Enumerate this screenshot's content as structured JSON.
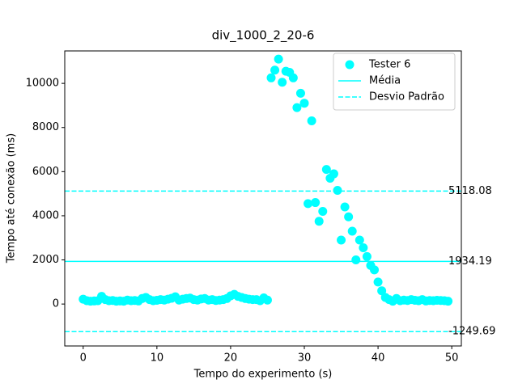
{
  "chart_data": {
    "type": "scatter",
    "title": "div_1000_2_20-6",
    "x_label": "Tempo do experimento (s)",
    "y_label": "Tempo até conexão (ms)",
    "xlim": [
      -2.5,
      51.3
    ],
    "ylim": [
      -1900,
      11470
    ],
    "xticks": [
      0,
      10,
      20,
      30,
      40,
      50
    ],
    "yticks": [
      0,
      2000,
      4000,
      6000,
      8000,
      10000
    ],
    "legend": "upper right",
    "series": [
      {
        "name": "Tester 6",
        "color": "#00ffff",
        "x": [
          0,
          0.5,
          1,
          1.5,
          2,
          2.5,
          3,
          3.5,
          4,
          4.5,
          5,
          5.5,
          6,
          6.5,
          7,
          7.5,
          8,
          8.5,
          9,
          9.5,
          10,
          10.5,
          11,
          11.5,
          12,
          12.5,
          13,
          13.5,
          14,
          14.5,
          15,
          15.5,
          16,
          16.5,
          17,
          17.5,
          18,
          18.5,
          19,
          19.5,
          20,
          20.5,
          21,
          21.5,
          22,
          22.5,
          23,
          23.5,
          24,
          24.5,
          25,
          25.5,
          26,
          26.5,
          27,
          27.5,
          28,
          28.5,
          29,
          29.5,
          30,
          30.5,
          31,
          31.5,
          32,
          32.5,
          33,
          33.5,
          34,
          34.5,
          35,
          35.5,
          36,
          36.5,
          37,
          37.5,
          38,
          38.5,
          39,
          39.5,
          40,
          40.5,
          41,
          41.5,
          42,
          42.5,
          43,
          43.5,
          44,
          44.5,
          45,
          45.5,
          46,
          46.5,
          47,
          47.5,
          48,
          48.5,
          49,
          49.5
        ],
        "values": [
          220,
          150,
          130,
          140,
          150,
          350,
          200,
          150,
          160,
          130,
          140,
          130,
          180,
          150,
          160,
          140,
          250,
          300,
          200,
          150,
          170,
          200,
          180,
          220,
          260,
          330,
          180,
          220,
          250,
          270,
          200,
          180,
          230,
          250,
          180,
          200,
          160,
          180,
          200,
          250,
          370,
          440,
          350,
          300,
          250,
          220,
          200,
          200,
          150,
          280,
          180,
          10250,
          10600,
          11100,
          10050,
          10550,
          10500,
          10250,
          8900,
          9550,
          9100,
          4550,
          8300,
          4600,
          3750,
          4200,
          6100,
          5700,
          5900,
          5150,
          2900,
          4400,
          3950,
          3300,
          2000,
          2900,
          2550,
          2150,
          1750,
          1550,
          1000,
          600,
          300,
          200,
          130,
          250,
          150,
          180,
          160,
          200,
          170,
          150,
          200,
          140,
          160,
          150,
          170,
          160,
          150,
          130
        ]
      }
    ],
    "lines": [
      {
        "name": "Média",
        "color": "#00ffff",
        "style": "solid",
        "value": 1934.19
      },
      {
        "name": "Desvio Padrão",
        "color": "#00ffff",
        "style": "dashed",
        "value": 5118.08
      },
      {
        "color": "#00ffff",
        "style": "dashed",
        "value": -1249.69
      }
    ]
  }
}
